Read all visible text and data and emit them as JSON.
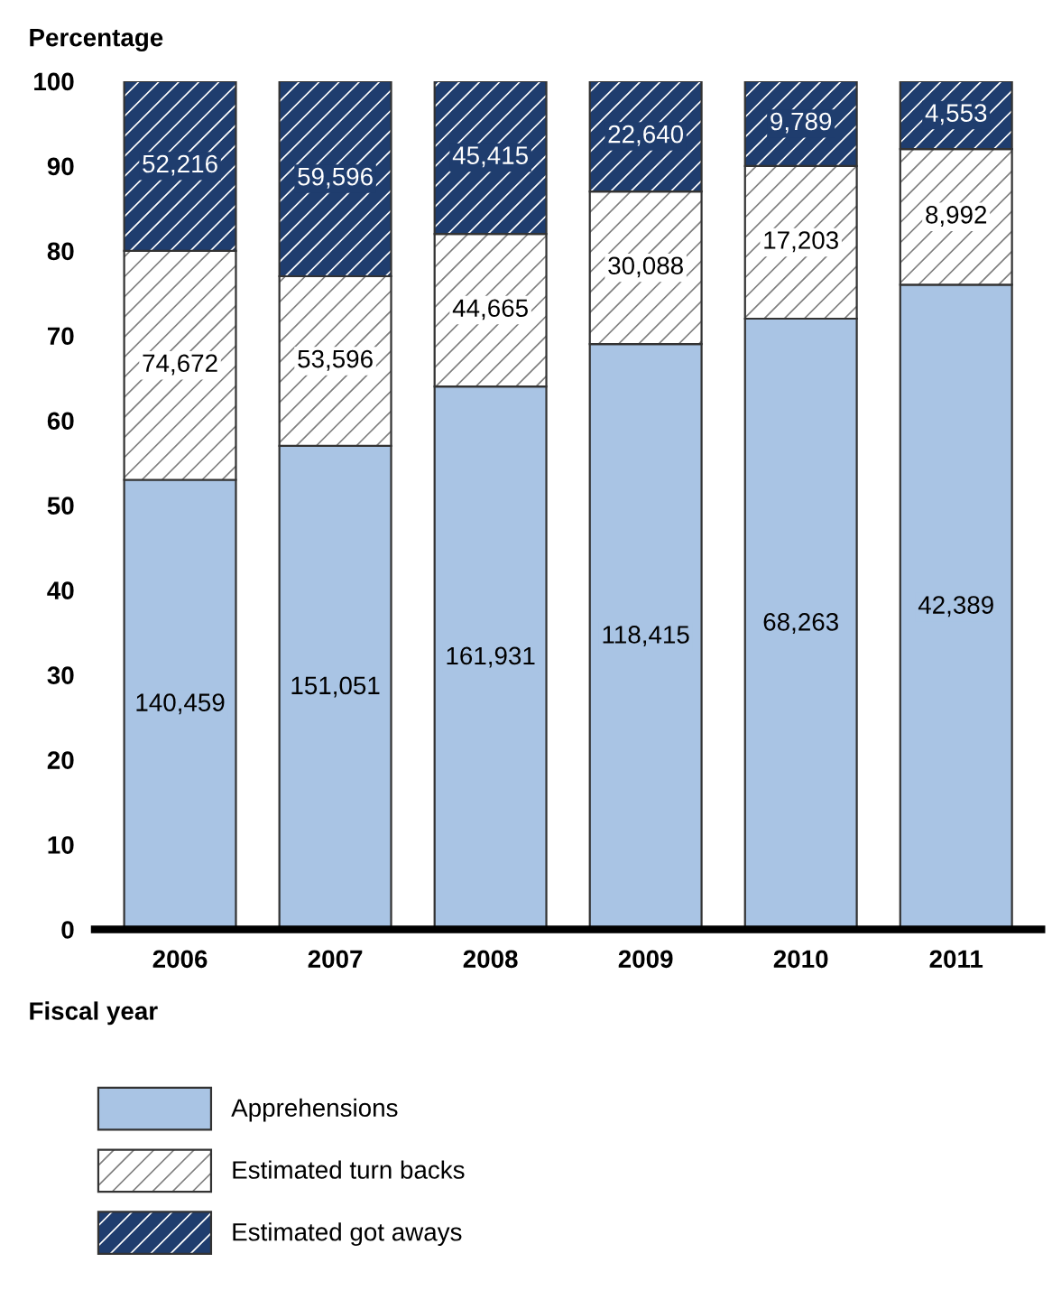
{
  "chart_data": {
    "type": "bar",
    "stacked": true,
    "ylabel": "Percentage",
    "xlabel": "Fiscal year",
    "categories": [
      "2006",
      "2007",
      "2008",
      "2009",
      "2010",
      "2011"
    ],
    "series": [
      {
        "name": "Apprehensions",
        "color": "#a9c4e4",
        "values": [
          53,
          57,
          64,
          69,
          72,
          76
        ]
      },
      {
        "name": "Estimated turn backs",
        "color": "#ffffff",
        "values": [
          27,
          20,
          18,
          18,
          18,
          16
        ]
      },
      {
        "name": "Estimated got aways",
        "color": "#1f3d6e",
        "values": [
          20,
          23,
          18,
          13,
          10,
          8
        ]
      }
    ],
    "annotations": [
      "140,459",
      "151,051",
      "161,931",
      "118,415",
      "68,263",
      "42,389",
      "74,672",
      "53,596",
      "44,665",
      "30,088",
      "17,203",
      "8,992",
      "52,216",
      "59,596",
      "45,415",
      "22,640",
      "9,789",
      "4,553"
    ],
    "ylim": [
      0,
      100
    ],
    "yticks": [
      0,
      10,
      20,
      30,
      40,
      50,
      60,
      70,
      80,
      90,
      100
    ],
    "grid": false,
    "legend": "bottom"
  }
}
